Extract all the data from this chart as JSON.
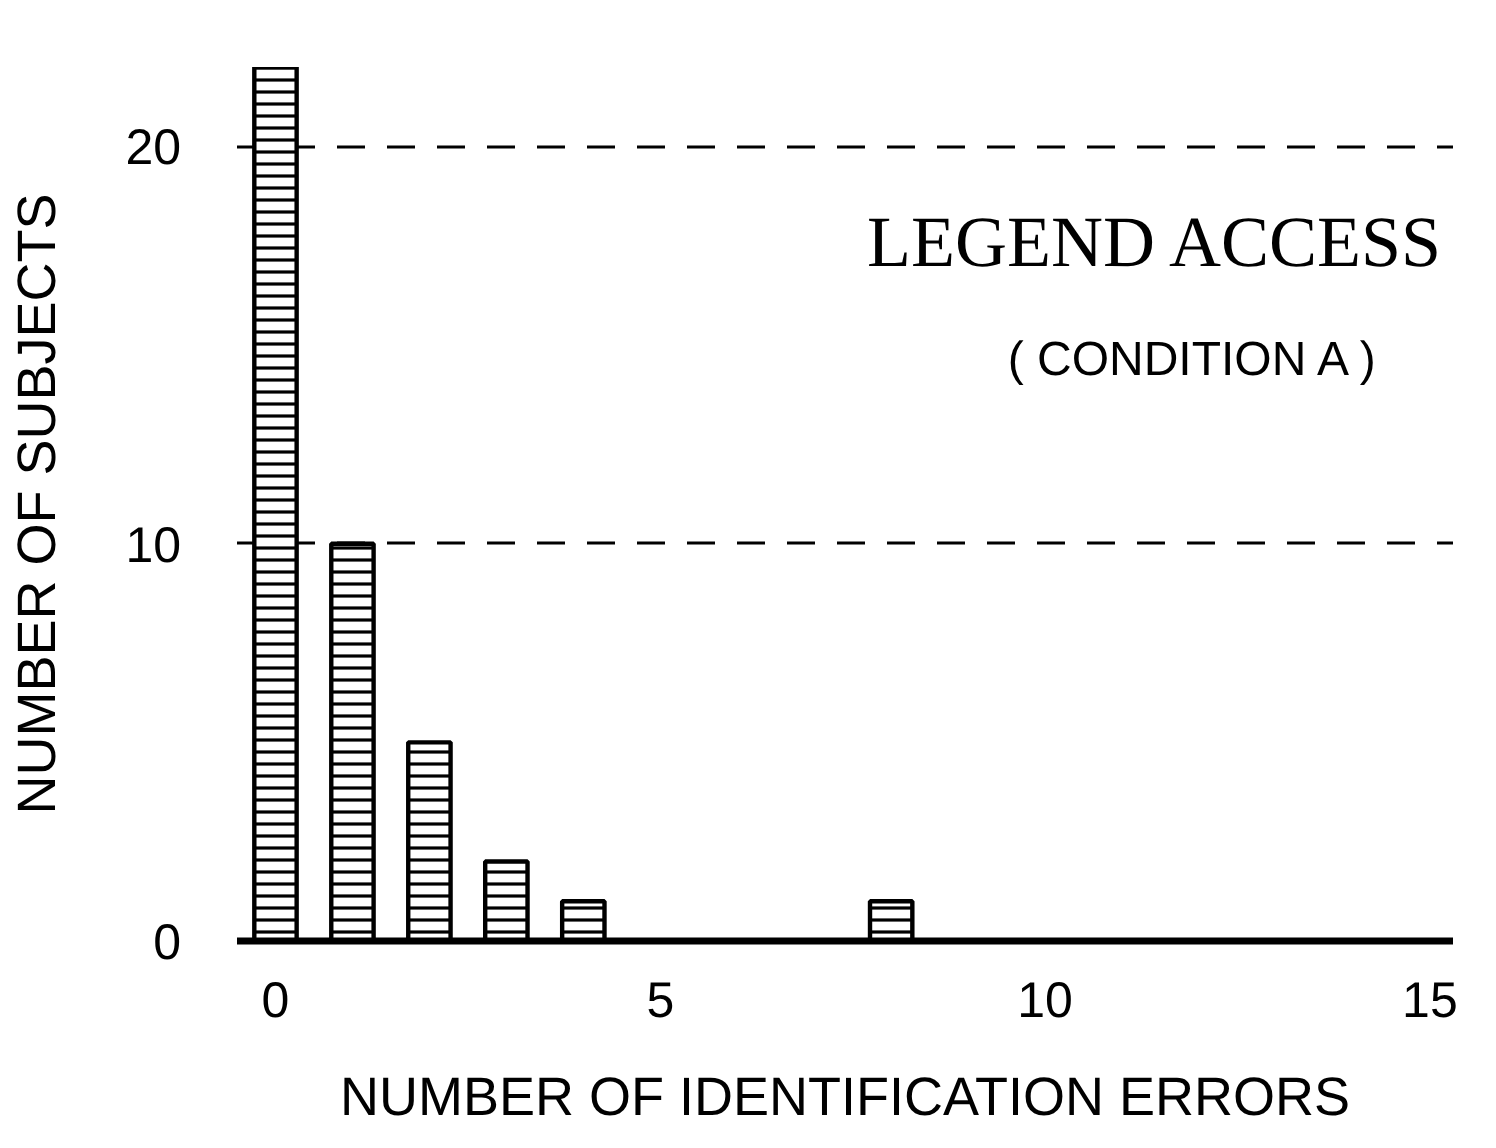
{
  "chart_data": {
    "type": "bar",
    "title": "LEGEND ACCESS",
    "subtitle": "( CONDITION A )",
    "xlabel": "NUMBER OF IDENTIFICATION ERRORS",
    "ylabel": "NUMBER OF SUBJECTS",
    "x": [
      0,
      1,
      2,
      3,
      4,
      8
    ],
    "values": [
      22,
      10,
      5,
      2,
      1,
      1
    ],
    "color": "#000000",
    "xlim": [
      -0.5,
      15.3
    ],
    "ylim": [
      0,
      22
    ],
    "xticks": [
      0,
      5,
      10,
      15
    ],
    "yticks": [
      0,
      10,
      20
    ],
    "grid": "y"
  }
}
